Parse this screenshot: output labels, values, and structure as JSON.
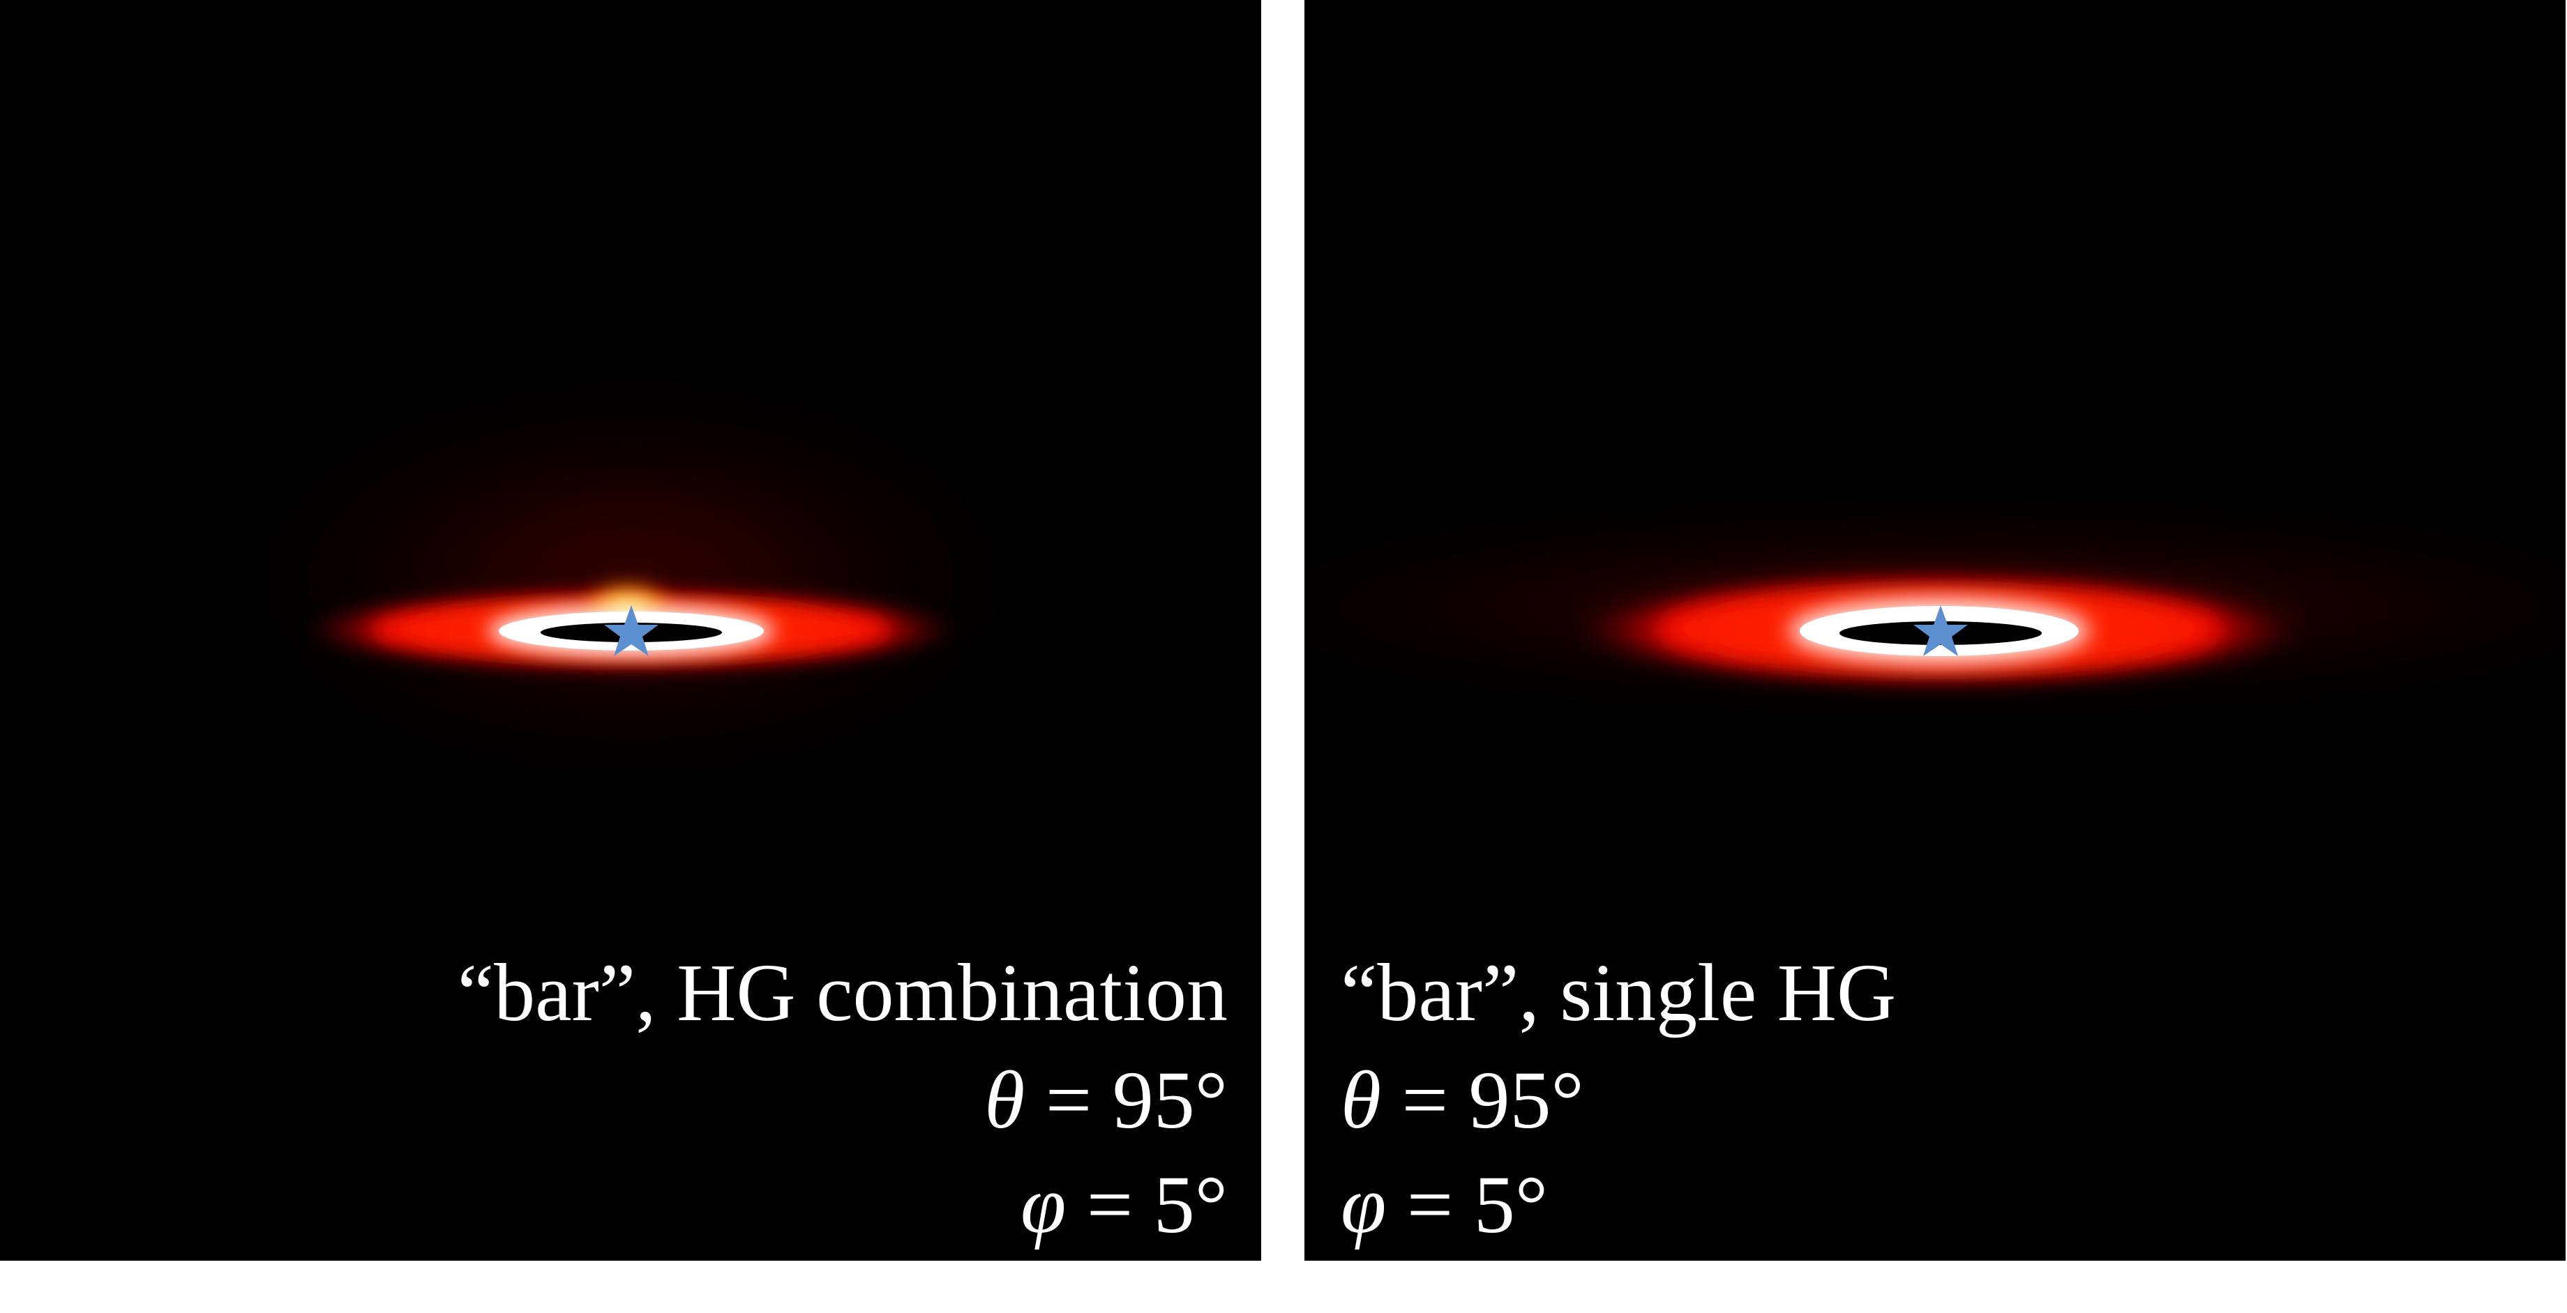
{
  "panels": [
    {
      "title": "“bar”, HG combination",
      "theta_symbol": "θ",
      "theta_value": " = 95°",
      "phi_symbol": "φ",
      "phi_value": " = 5°",
      "star_color": "#5b8fd0"
    },
    {
      "title": "“bar”, single HG",
      "theta_symbol": "θ",
      "theta_value": " = 95°",
      "phi_symbol": "φ",
      "phi_value": " = 5°",
      "star_color": "#5b8fd0"
    }
  ],
  "colors": {
    "background": "#000000",
    "separator": "#ffffff",
    "text": "#ffffff",
    "glow_outer": "#d40000",
    "glow_mid": "#ff3300",
    "glow_inner": "#ffd24a",
    "ring": "#ffffff"
  }
}
